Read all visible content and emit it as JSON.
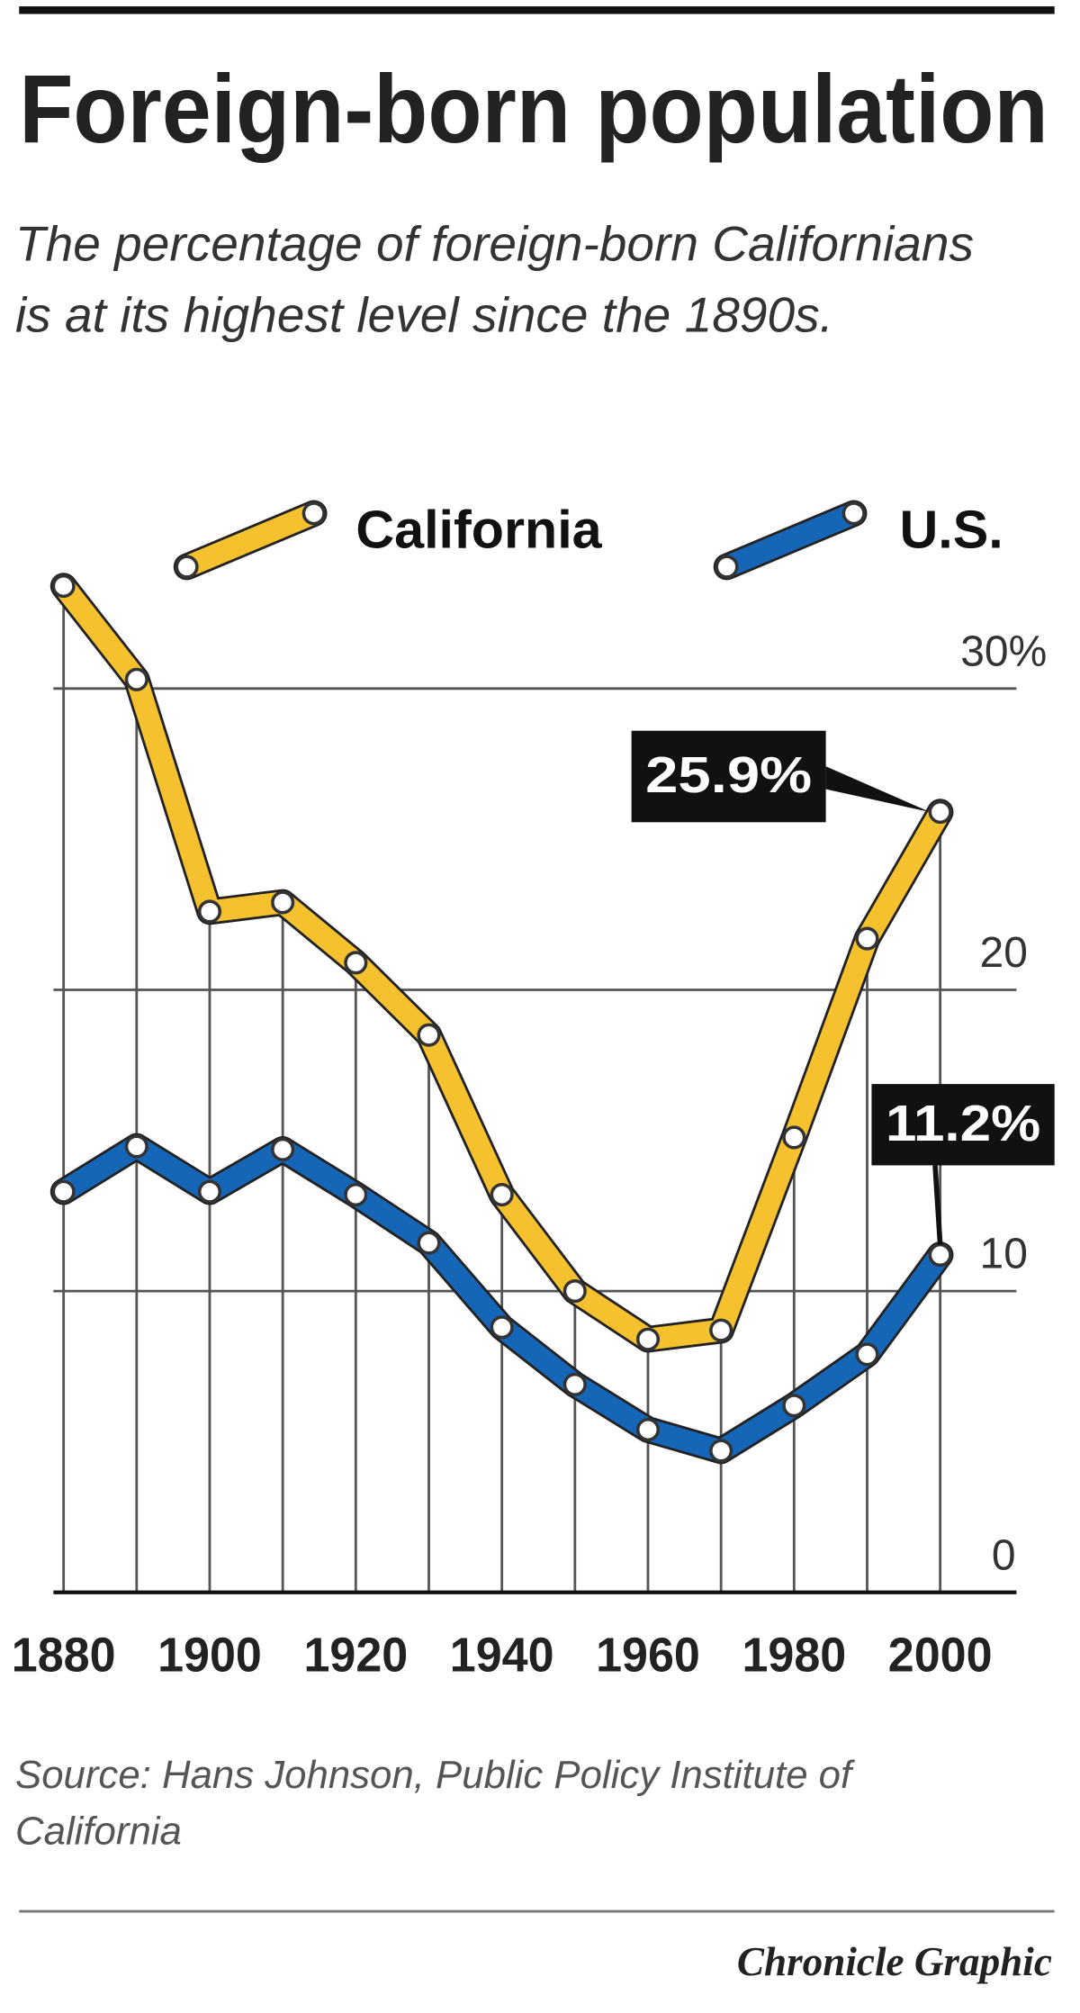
{
  "chart_data": {
    "type": "line",
    "title": "Foreign-born population",
    "subtitle": "The percentage of foreign-born Californians is at its highest level since the 1890s.",
    "source": "Source: Hans Johnson, Public Policy Institute of California",
    "credit": "Chronicle Graphic",
    "x": [
      1880,
      1890,
      1900,
      1910,
      1920,
      1930,
      1940,
      1950,
      1960,
      1970,
      1980,
      1990,
      2000
    ],
    "series": [
      {
        "name": "California",
        "color": "#f5c12e",
        "values": [
          33.4,
          30.3,
          22.6,
          22.9,
          20.9,
          18.5,
          13.2,
          10.0,
          8.4,
          8.7,
          15.1,
          21.7,
          25.9
        ],
        "value_labels": [
          null,
          null,
          null,
          null,
          null,
          null,
          null,
          null,
          null,
          null,
          null,
          null,
          "25.9%"
        ]
      },
      {
        "name": "U.S.",
        "color": "#1666b8",
        "values": [
          13.3,
          14.8,
          13.3,
          14.7,
          13.2,
          11.6,
          8.8,
          6.9,
          5.4,
          4.7,
          6.2,
          7.9,
          11.2
        ],
        "value_labels": [
          null,
          null,
          null,
          null,
          null,
          null,
          null,
          null,
          null,
          null,
          null,
          null,
          "11.2%"
        ]
      }
    ],
    "xlim": [
      1880,
      2000
    ],
    "xticks": [
      1880,
      1900,
      1920,
      1940,
      1960,
      1980,
      2000
    ],
    "ylim": [
      0,
      34
    ],
    "yticks": [
      0,
      10,
      20,
      {
        "value": 30,
        "label": "30%"
      }
    ],
    "grid": true
  }
}
